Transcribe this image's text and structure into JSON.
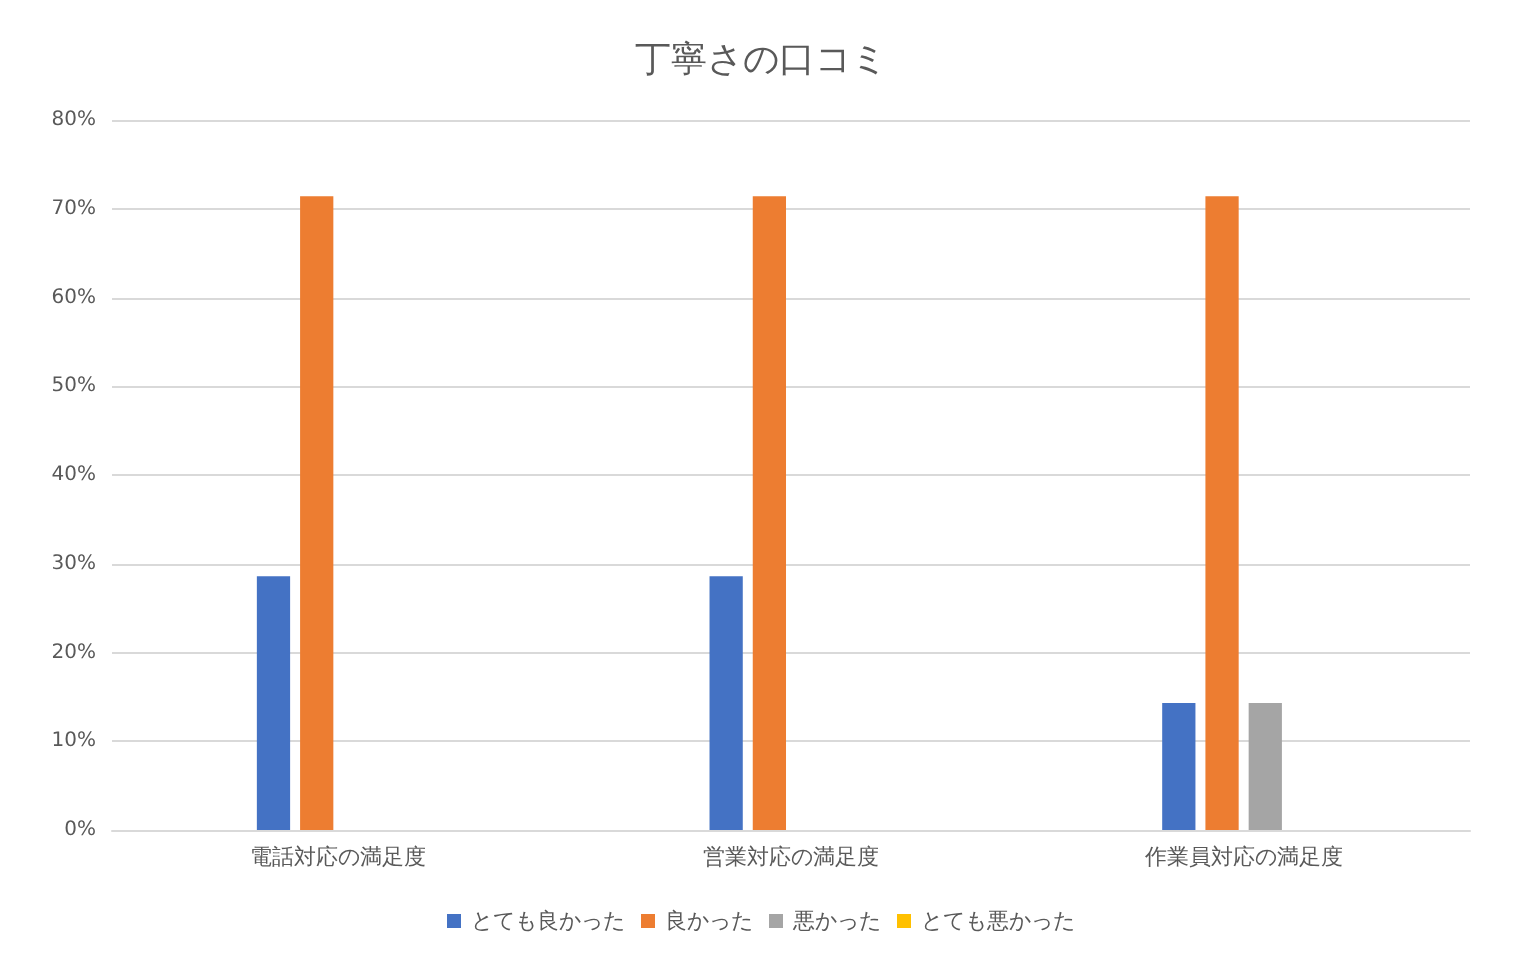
{
  "chart_data": {
    "type": "bar",
    "title": "丁寧さの口コミ",
    "categories": [
      "電話対応の満足度",
      "営業対応の満足度",
      "作業員対応の満足度"
    ],
    "series": [
      {
        "name": "とても良かった",
        "color": "#4472c4",
        "values": [
          28.6,
          28.6,
          14.3
        ]
      },
      {
        "name": "良かった",
        "color": "#ed7d31",
        "values": [
          71.4,
          71.4,
          71.4
        ]
      },
      {
        "name": "悪かった",
        "color": "#a5a5a5",
        "values": [
          0,
          0,
          14.3
        ]
      },
      {
        "name": "とても悪かった",
        "color": "#ffc000",
        "values": [
          0,
          0,
          0
        ]
      }
    ],
    "ylim": [
      0,
      80
    ],
    "yticks": [
      {
        "value": 0,
        "label": "0%"
      },
      {
        "value": 10,
        "label": "10%"
      },
      {
        "value": 20,
        "label": "20%"
      },
      {
        "value": 30,
        "label": "30%"
      },
      {
        "value": 40,
        "label": "40%"
      },
      {
        "value": 50,
        "label": "50%"
      },
      {
        "value": 60,
        "label": "60%"
      },
      {
        "value": 70,
        "label": "70%"
      },
      {
        "value": 80,
        "label": "80%"
      }
    ],
    "grid": "y",
    "legend": "bottom"
  }
}
